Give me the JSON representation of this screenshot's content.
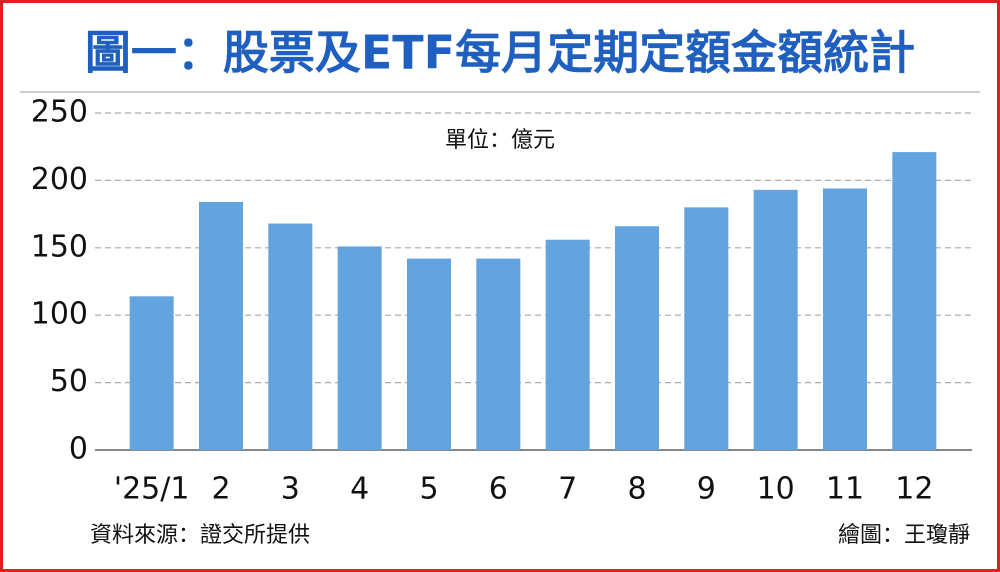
{
  "chart_data": {
    "type": "bar",
    "title": "圖一：股票及ETF每月定期定額金額統計",
    "unit_label": "單位：億元",
    "source": "資料來源：證交所提供",
    "credit": "繪圖：王瓊靜",
    "categories": [
      "'25/1",
      "2",
      "3",
      "4",
      "5",
      "6",
      "7",
      "8",
      "9",
      "10",
      "11",
      "12"
    ],
    "values": [
      114,
      184,
      168,
      151,
      142,
      142,
      156,
      166,
      180,
      193,
      194,
      221
    ],
    "color": "#62a3e0",
    "ylim": [
      0,
      250
    ],
    "yticks": [
      0,
      50,
      100,
      150,
      200,
      250
    ],
    "grid": true
  }
}
